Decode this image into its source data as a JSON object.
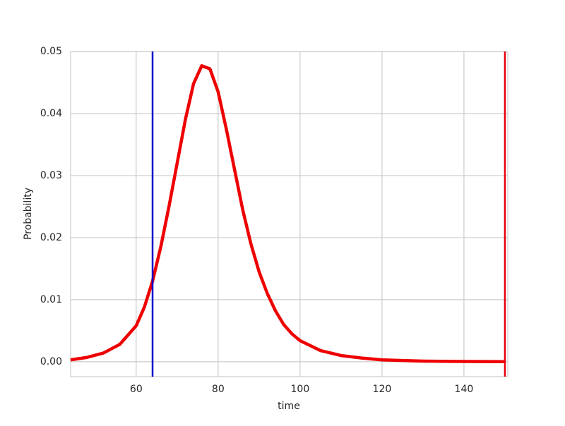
{
  "chart_data": {
    "type": "line",
    "xlabel": "time",
    "ylabel": "Probability",
    "x": [
      44,
      48,
      52,
      56,
      60,
      62,
      64,
      66,
      68,
      70,
      72,
      74,
      76,
      78,
      80,
      82,
      84,
      86,
      88,
      90,
      92,
      94,
      96,
      98,
      100,
      105,
      110,
      115,
      120,
      130,
      140,
      150
    ],
    "series": [
      {
        "color": "#ee0000",
        "values": [
          0.0003,
          0.0007,
          0.0014,
          0.0028,
          0.0058,
          0.0088,
          0.013,
          0.0185,
          0.025,
          0.032,
          0.039,
          0.0448,
          0.0477,
          0.0472,
          0.0435,
          0.0375,
          0.031,
          0.0245,
          0.019,
          0.0145,
          0.011,
          0.0082,
          0.006,
          0.0045,
          0.0034,
          0.0018,
          0.001,
          0.0006,
          0.0003,
          0.0001,
          4e-05,
          1e-05
        ]
      }
    ],
    "vlines": [
      {
        "x": 64,
        "color": "#0000cc"
      },
      {
        "x": 150,
        "color": "#e8000b"
      }
    ],
    "xlim": [
      44,
      150.7
    ],
    "ylim": [
      -0.0024,
      0.05
    ],
    "xticks": [
      60,
      80,
      100,
      120,
      140
    ],
    "yticks": [
      {
        "value": 0,
        "label": "0.00"
      },
      0.01,
      0.02,
      0.03,
      0.04,
      0.05
    ],
    "grid": true
  }
}
